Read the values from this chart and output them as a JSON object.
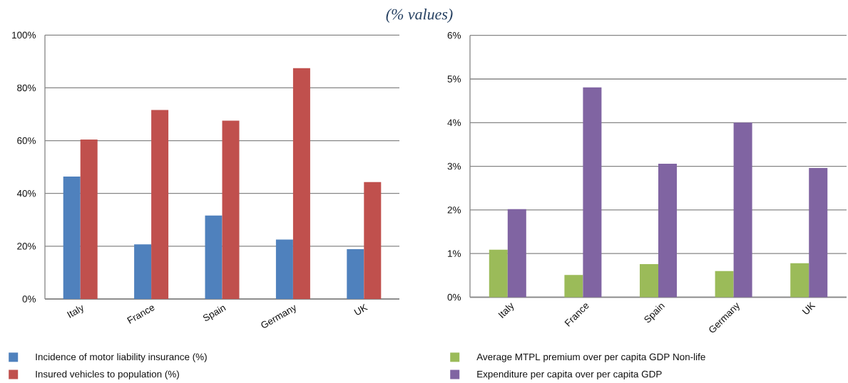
{
  "chart_data": [
    {
      "type": "bar",
      "title": "(% values)",
      "categories": [
        "Italy",
        "France",
        "Spain",
        "Germany",
        "UK"
      ],
      "series": [
        {
          "name": "Incidence of motor liability insurance (%)",
          "color": "#4f81bd",
          "values": [
            46.4,
            20.7,
            31.6,
            22.5,
            18.9
          ]
        },
        {
          "name": "Insured vehicles to population (%)",
          "color": "#c0504d",
          "values": [
            60.4,
            71.6,
            67.6,
            87.5,
            44.3
          ]
        }
      ],
      "ylim": [
        0,
        100
      ],
      "yticks": [
        {
          "value": 0,
          "label": "0%"
        },
        {
          "value": 20,
          "label": "20%"
        },
        {
          "value": 40,
          "label": "40%"
        },
        {
          "value": 60,
          "label": "60%"
        },
        {
          "value": 80,
          "label": "80%"
        },
        {
          "value": 100,
          "label": "100%"
        }
      ],
      "grid": "y",
      "legend": "bottom"
    },
    {
      "type": "bar",
      "categories": [
        "Italy",
        "France",
        "Spain",
        "Germany",
        "UK"
      ],
      "series": [
        {
          "name": "Average MTPL premium over per capita GDP Non-life",
          "color": "#9bbb59",
          "values": [
            1.09,
            0.51,
            0.76,
            0.6,
            0.78
          ]
        },
        {
          "name": "Expenditure per capita over per capita GDP",
          "color": "#8064a2",
          "values": [
            2.02,
            4.81,
            3.06,
            4.0,
            2.96
          ]
        }
      ],
      "ylim": [
        0,
        6
      ],
      "yticks": [
        {
          "value": 0,
          "label": "0%"
        },
        {
          "value": 1,
          "label": "1%"
        },
        {
          "value": 2,
          "label": "2%"
        },
        {
          "value": 3,
          "label": "3%"
        },
        {
          "value": 4,
          "label": "4%"
        },
        {
          "value": 5,
          "label": "5%"
        },
        {
          "value": 6,
          "label": "6%"
        }
      ],
      "grid": "y",
      "legend": "bottom"
    }
  ]
}
